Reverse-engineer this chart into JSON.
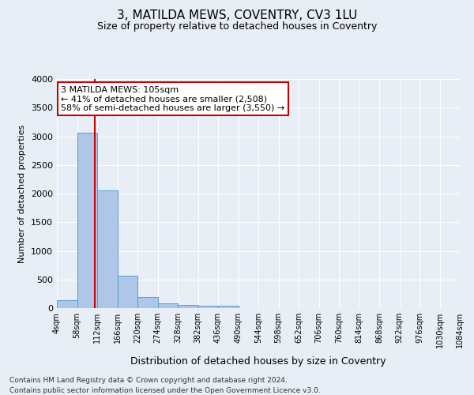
{
  "title": "3, MATILDA MEWS, COVENTRY, CV3 1LU",
  "subtitle": "Size of property relative to detached houses in Coventry",
  "xlabel": "Distribution of detached houses by size in Coventry",
  "ylabel": "Number of detached properties",
  "footnote1": "Contains HM Land Registry data © Crown copyright and database right 2024.",
  "footnote2": "Contains public sector information licensed under the Open Government Licence v3.0.",
  "bin_edges": [
    4,
    58,
    112,
    166,
    220,
    274,
    328,
    382,
    436,
    490,
    544,
    598,
    652,
    706,
    760,
    814,
    868,
    922,
    976,
    1030,
    1084
  ],
  "bin_counts": [
    140,
    3060,
    2060,
    565,
    200,
    80,
    55,
    40,
    45,
    0,
    0,
    0,
    0,
    0,
    0,
    0,
    0,
    0,
    0,
    0
  ],
  "bar_color": "#aec6e8",
  "bar_edge_color": "#5a9fd4",
  "property_size": 105,
  "vline_color": "#cc0000",
  "annotation_text": "3 MATILDA MEWS: 105sqm\n← 41% of detached houses are smaller (2,508)\n58% of semi-detached houses are larger (3,550) →",
  "annotation_box_color": "#ffffff",
  "annotation_box_edge_color": "#cc0000",
  "ylim": [
    0,
    4000
  ],
  "yticks": [
    0,
    500,
    1000,
    1500,
    2000,
    2500,
    3000,
    3500,
    4000
  ],
  "background_color": "#e8eef5",
  "grid_color": "#ffffff",
  "tick_label_suffix": "sqm",
  "title_fontsize": 11,
  "subtitle_fontsize": 9,
  "xlabel_fontsize": 9,
  "ylabel_fontsize": 8,
  "footnote_fontsize": 6.5,
  "annotation_fontsize": 8
}
